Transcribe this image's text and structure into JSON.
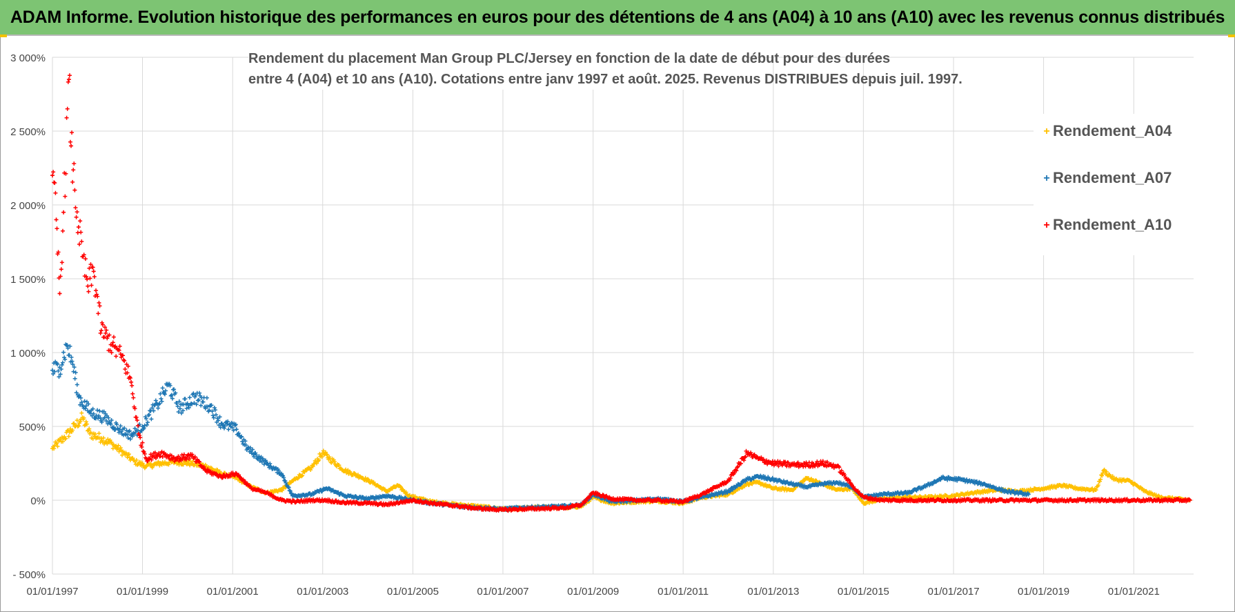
{
  "banner": {
    "title": "ADAM Informe. Evolution historique des performances en euros pour des détentions de 4 ans (A04) à 10 ans (A10) avec les revenus connus distribués"
  },
  "colors": {
    "banner_bg": "#7dc473",
    "A04": "#ffc000",
    "A07": "#1f77b4",
    "A10": "#ff0000",
    "grid": "#d9d9d9"
  },
  "chart_data": {
    "type": "scatter",
    "title_lines": [
      "Rendement du placement Man Group PLC/Jersey en fonction de la date de début pour des durées",
      "entre 4 (A04) et 10 ans (A10).  Cotations entre janv 1997 et août. 2025. Revenus DISTRIBUES depuis juil. 1997."
    ],
    "xlim": [
      "1997-01-01",
      "2022-05-01"
    ],
    "ylim": [
      -500,
      3000
    ],
    "y_ticks": [
      -500,
      0,
      500,
      1000,
      1500,
      2000,
      2500,
      3000
    ],
    "y_tick_labels": [
      "- 500%",
      "0%",
      "500%",
      "1 000%",
      "1 500%",
      "2 000%",
      "2 500%",
      "3 000%"
    ],
    "x_ticks": [
      "1997-01-01",
      "1999-01-01",
      "2001-01-01",
      "2003-01-01",
      "2005-01-01",
      "2007-01-01",
      "2009-01-01",
      "2011-01-01",
      "2013-01-01",
      "2015-01-01",
      "2017-01-01",
      "2019-01-01",
      "2021-01-01"
    ],
    "x_tick_labels": [
      "01/01/1997",
      "01/01/1999",
      "01/01/2001",
      "01/01/2003",
      "01/01/2005",
      "01/01/2007",
      "01/01/2009",
      "01/01/2011",
      "01/01/2013",
      "01/01/2015",
      "01/01/2017",
      "01/01/2019",
      "01/01/2021"
    ],
    "grid": true,
    "legend_position": "right",
    "marker": "+",
    "series": [
      {
        "name": "Rendement_A04",
        "color": "#ffc000",
        "points": [
          [
            "1997-01-01",
            350
          ],
          [
            "1997-04-01",
            420
          ],
          [
            "1997-07-01",
            500
          ],
          [
            "1997-09-01",
            560
          ],
          [
            "1997-11-01",
            450
          ],
          [
            "1998-02-01",
            420
          ],
          [
            "1998-05-01",
            380
          ],
          [
            "1998-08-01",
            320
          ],
          [
            "1998-11-01",
            260
          ],
          [
            "1999-02-01",
            230
          ],
          [
            "1999-06-01",
            250
          ],
          [
            "1999-10-01",
            260
          ],
          [
            "2000-02-01",
            250
          ],
          [
            "2000-06-01",
            230
          ],
          [
            "2000-10-01",
            180
          ],
          [
            "2001-02-01",
            150
          ],
          [
            "2001-06-01",
            90
          ],
          [
            "2001-10-01",
            50
          ],
          [
            "2002-02-01",
            70
          ],
          [
            "2002-06-01",
            150
          ],
          [
            "2002-10-01",
            220
          ],
          [
            "2003-01-01",
            320
          ],
          [
            "2003-03-01",
            280
          ],
          [
            "2003-07-01",
            200
          ],
          [
            "2003-11-01",
            160
          ],
          [
            "2004-03-01",
            110
          ],
          [
            "2004-06-01",
            60
          ],
          [
            "2004-09-01",
            100
          ],
          [
            "2004-12-01",
            30
          ],
          [
            "2005-06-01",
            -10
          ],
          [
            "2006-01-01",
            -30
          ],
          [
            "2006-06-01",
            -40
          ],
          [
            "2007-01-01",
            -60
          ],
          [
            "2007-06-01",
            -55
          ],
          [
            "2008-01-01",
            -45
          ],
          [
            "2008-06-01",
            -50
          ],
          [
            "2008-10-01",
            -40
          ],
          [
            "2009-01-01",
            20
          ],
          [
            "2009-06-01",
            -20
          ],
          [
            "2010-01-01",
            -10
          ],
          [
            "2010-06-01",
            -5
          ],
          [
            "2011-01-01",
            -20
          ],
          [
            "2011-06-01",
            20
          ],
          [
            "2012-01-01",
            40
          ],
          [
            "2012-06-01",
            110
          ],
          [
            "2012-09-01",
            120
          ],
          [
            "2013-01-01",
            80
          ],
          [
            "2013-06-01",
            70
          ],
          [
            "2013-10-01",
            150
          ],
          [
            "2014-02-01",
            110
          ],
          [
            "2014-06-01",
            70
          ],
          [
            "2014-10-01",
            80
          ],
          [
            "2015-01-01",
            -20
          ],
          [
            "2015-06-01",
            10
          ],
          [
            "2016-01-01",
            20
          ],
          [
            "2016-06-01",
            20
          ],
          [
            "2017-01-01",
            30
          ],
          [
            "2017-06-01",
            50
          ],
          [
            "2018-01-01",
            70
          ],
          [
            "2018-06-01",
            60
          ],
          [
            "2019-01-01",
            80
          ],
          [
            "2019-06-01",
            100
          ],
          [
            "2019-10-01",
            80
          ],
          [
            "2020-03-01",
            70
          ],
          [
            "2020-05-01",
            200
          ],
          [
            "2020-08-01",
            140
          ],
          [
            "2020-12-01",
            130
          ],
          [
            "2021-04-01",
            60
          ],
          [
            "2021-08-01",
            20
          ],
          [
            "2022-04-01",
            0
          ]
        ]
      },
      {
        "name": "Rendement_A07",
        "color": "#1f77b4",
        "points": [
          [
            "1997-01-01",
            880
          ],
          [
            "1997-03-01",
            900
          ],
          [
            "1997-05-01",
            1050
          ],
          [
            "1997-06-15",
            920
          ],
          [
            "1997-08-01",
            700
          ],
          [
            "1997-11-01",
            600
          ],
          [
            "1998-03-01",
            560
          ],
          [
            "1998-07-01",
            480
          ],
          [
            "1998-10-01",
            440
          ],
          [
            "1999-01-01",
            500
          ],
          [
            "1999-05-01",
            650
          ],
          [
            "1999-08-01",
            780
          ],
          [
            "1999-11-01",
            620
          ],
          [
            "2000-03-01",
            700
          ],
          [
            "2000-07-01",
            640
          ],
          [
            "2000-10-01",
            520
          ],
          [
            "2001-02-01",
            480
          ],
          [
            "2001-05-01",
            350
          ],
          [
            "2001-10-01",
            250
          ],
          [
            "2002-02-01",
            180
          ],
          [
            "2002-05-01",
            30
          ],
          [
            "2002-10-01",
            40
          ],
          [
            "2003-02-01",
            80
          ],
          [
            "2003-07-01",
            30
          ],
          [
            "2004-01-01",
            10
          ],
          [
            "2004-06-01",
            30
          ],
          [
            "2005-01-01",
            0
          ],
          [
            "2005-06-01",
            -20
          ],
          [
            "2006-01-01",
            -40
          ],
          [
            "2006-06-01",
            -50
          ],
          [
            "2007-01-01",
            -60
          ],
          [
            "2007-06-01",
            -50
          ],
          [
            "2008-01-01",
            -45
          ],
          [
            "2008-06-01",
            -40
          ],
          [
            "2008-10-01",
            -30
          ],
          [
            "2009-01-01",
            40
          ],
          [
            "2009-06-01",
            -10
          ],
          [
            "2010-01-01",
            0
          ],
          [
            "2010-06-01",
            10
          ],
          [
            "2011-01-01",
            -10
          ],
          [
            "2011-06-01",
            20
          ],
          [
            "2012-01-01",
            60
          ],
          [
            "2012-06-01",
            140
          ],
          [
            "2012-09-01",
            160
          ],
          [
            "2013-01-01",
            140
          ],
          [
            "2013-06-01",
            110
          ],
          [
            "2013-10-01",
            90
          ],
          [
            "2014-02-01",
            110
          ],
          [
            "2014-06-01",
            120
          ],
          [
            "2014-10-01",
            90
          ],
          [
            "2015-01-01",
            20
          ],
          [
            "2015-06-01",
            40
          ],
          [
            "2016-01-01",
            50
          ],
          [
            "2016-06-01",
            100
          ],
          [
            "2016-10-01",
            150
          ],
          [
            "2017-03-01",
            140
          ],
          [
            "2017-09-01",
            110
          ],
          [
            "2018-03-01",
            60
          ],
          [
            "2018-09-01",
            40
          ]
        ]
      },
      {
        "name": "Rendement_A10",
        "color": "#ff0000",
        "points": [
          [
            "1997-01-01",
            2200
          ],
          [
            "1997-02-01",
            1900
          ],
          [
            "1997-03-01",
            1400
          ],
          [
            "1997-04-01",
            1950
          ],
          [
            "1997-05-15",
            2850
          ],
          [
            "1997-06-01",
            2400
          ],
          [
            "1997-07-01",
            2100
          ],
          [
            "1997-08-01",
            1850
          ],
          [
            "1997-09-01",
            1650
          ],
          [
            "1997-10-15",
            1450
          ],
          [
            "1997-12-01",
            1550
          ],
          [
            "1998-02-01",
            1150
          ],
          [
            "1998-05-01",
            1050
          ],
          [
            "1998-08-01",
            950
          ],
          [
            "1998-10-01",
            800
          ],
          [
            "1998-12-01",
            450
          ],
          [
            "1999-02-01",
            280
          ],
          [
            "1999-06-01",
            320
          ],
          [
            "1999-10-01",
            280
          ],
          [
            "2000-02-01",
            300
          ],
          [
            "2000-06-01",
            200
          ],
          [
            "2000-10-01",
            160
          ],
          [
            "2001-02-01",
            180
          ],
          [
            "2001-06-01",
            80
          ],
          [
            "2001-10-01",
            50
          ],
          [
            "2002-02-01",
            0
          ],
          [
            "2002-06-01",
            -10
          ],
          [
            "2002-10-01",
            0
          ],
          [
            "2003-02-01",
            0
          ],
          [
            "2003-06-01",
            -15
          ],
          [
            "2004-01-01",
            -20
          ],
          [
            "2004-06-01",
            -30
          ],
          [
            "2005-01-01",
            0
          ],
          [
            "2005-06-01",
            -20
          ],
          [
            "2006-01-01",
            -40
          ],
          [
            "2006-06-01",
            -55
          ],
          [
            "2007-01-01",
            -65
          ],
          [
            "2007-06-01",
            -60
          ],
          [
            "2008-01-01",
            -55
          ],
          [
            "2008-06-01",
            -50
          ],
          [
            "2008-10-01",
            -30
          ],
          [
            "2009-01-01",
            50
          ],
          [
            "2009-06-01",
            10
          ],
          [
            "2010-01-01",
            0
          ],
          [
            "2010-06-01",
            0
          ],
          [
            "2011-01-01",
            -10
          ],
          [
            "2011-06-01",
            40
          ],
          [
            "2012-01-01",
            130
          ],
          [
            "2012-06-01",
            320
          ],
          [
            "2012-09-01",
            280
          ],
          [
            "2013-01-01",
            250
          ],
          [
            "2013-06-01",
            240
          ],
          [
            "2013-10-01",
            240
          ],
          [
            "2014-02-01",
            250
          ],
          [
            "2014-06-01",
            230
          ],
          [
            "2014-10-01",
            100
          ],
          [
            "2015-01-01",
            20
          ],
          [
            "2015-06-01",
            0
          ],
          [
            "2016-01-01",
            0
          ],
          [
            "2017-01-01",
            0
          ],
          [
            "2018-01-01",
            0
          ],
          [
            "2019-01-01",
            0
          ],
          [
            "2020-01-01",
            0
          ],
          [
            "2021-01-01",
            0
          ],
          [
            "2022-04-01",
            0
          ]
        ]
      }
    ]
  }
}
